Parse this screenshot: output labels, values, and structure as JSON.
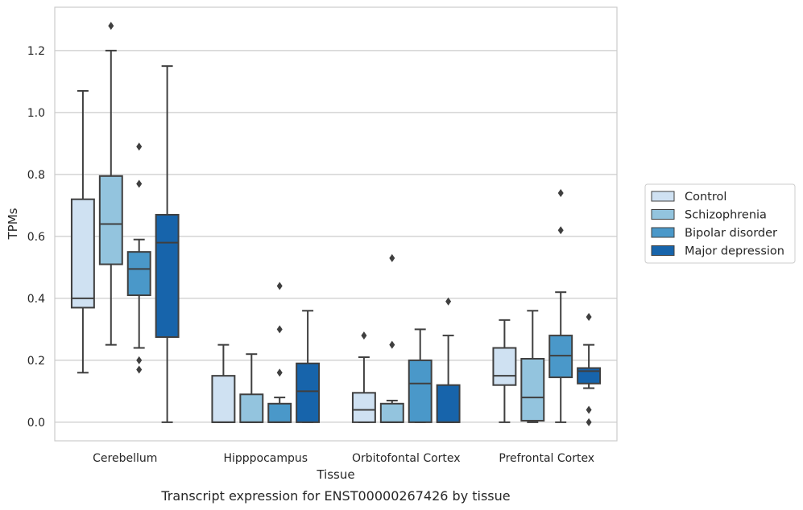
{
  "chart_data": {
    "type": "box",
    "caption": "Transcript expression for ENST00000267426 by tissue",
    "xlabel": "Tissue",
    "ylabel": "TPMs",
    "ylim": [
      -0.06,
      1.34
    ],
    "yticks": [
      0.0,
      0.2,
      0.4,
      0.6,
      0.8,
      1.0,
      1.2
    ],
    "ytick_labels": [
      "0.0",
      "0.2",
      "0.4",
      "0.6",
      "0.8",
      "1.0",
      "1.2"
    ],
    "grid": true,
    "legend_position": "right, outside plot",
    "categories": [
      "Cerebellum",
      "Hipppocampus",
      "Orbitofontal Cortex",
      "Prefrontal Cortex"
    ],
    "series": [
      {
        "name": "Control",
        "color": "#cfe1f2",
        "boxes": [
          {
            "whisker_low": 0.16,
            "q1": 0.37,
            "median": 0.4,
            "q3": 0.72,
            "whisker_high": 1.07,
            "outliers": []
          },
          {
            "whisker_low": 0.0,
            "q1": 0.0,
            "median": 0.0,
            "q3": 0.15,
            "whisker_high": 0.25,
            "outliers": []
          },
          {
            "whisker_low": 0.0,
            "q1": 0.0,
            "median": 0.04,
            "q3": 0.095,
            "whisker_high": 0.21,
            "outliers": [
              0.28
            ]
          },
          {
            "whisker_low": 0.0,
            "q1": 0.12,
            "median": 0.15,
            "q3": 0.24,
            "whisker_high": 0.33,
            "outliers": []
          }
        ]
      },
      {
        "name": "Schizophrenia",
        "color": "#93c4de",
        "boxes": [
          {
            "whisker_low": 0.25,
            "q1": 0.51,
            "median": 0.64,
            "q3": 0.795,
            "whisker_high": 1.2,
            "outliers": [
              1.28
            ]
          },
          {
            "whisker_low": 0.0,
            "q1": 0.0,
            "median": 0.0,
            "q3": 0.09,
            "whisker_high": 0.22,
            "outliers": []
          },
          {
            "whisker_low": 0.0,
            "q1": 0.0,
            "median": 0.0,
            "q3": 0.06,
            "whisker_high": 0.07,
            "outliers": [
              0.25,
              0.53
            ]
          },
          {
            "whisker_low": 0.0,
            "q1": 0.005,
            "median": 0.08,
            "q3": 0.205,
            "whisker_high": 0.36,
            "outliers": []
          }
        ]
      },
      {
        "name": "Bipolar disorder",
        "color": "#4a98c9",
        "boxes": [
          {
            "whisker_low": 0.24,
            "q1": 0.41,
            "median": 0.495,
            "q3": 0.55,
            "whisker_high": 0.59,
            "outliers": [
              0.17,
              0.2,
              0.77,
              0.89
            ]
          },
          {
            "whisker_low": 0.0,
            "q1": 0.0,
            "median": 0.0,
            "q3": 0.06,
            "whisker_high": 0.08,
            "outliers": [
              0.16,
              0.3,
              0.44
            ]
          },
          {
            "whisker_low": 0.0,
            "q1": 0.0,
            "median": 0.125,
            "q3": 0.2,
            "whisker_high": 0.3,
            "outliers": []
          },
          {
            "whisker_low": 0.0,
            "q1": 0.145,
            "median": 0.215,
            "q3": 0.28,
            "whisker_high": 0.42,
            "outliers": [
              0.62,
              0.74
            ]
          }
        ]
      },
      {
        "name": "Major depression",
        "color": "#1764ab",
        "boxes": [
          {
            "whisker_low": 0.0,
            "q1": 0.275,
            "median": 0.58,
            "q3": 0.67,
            "whisker_high": 1.15,
            "outliers": []
          },
          {
            "whisker_low": 0.0,
            "q1": 0.0,
            "median": 0.1,
            "q3": 0.19,
            "whisker_high": 0.36,
            "outliers": []
          },
          {
            "whisker_low": 0.0,
            "q1": 0.0,
            "median": 0.0,
            "q3": 0.12,
            "whisker_high": 0.28,
            "outliers": [
              0.39
            ]
          },
          {
            "whisker_low": 0.11,
            "q1": 0.125,
            "median": 0.165,
            "q3": 0.175,
            "whisker_high": 0.25,
            "outliers": [
              0.0,
              0.04,
              0.34
            ]
          }
        ]
      }
    ]
  }
}
